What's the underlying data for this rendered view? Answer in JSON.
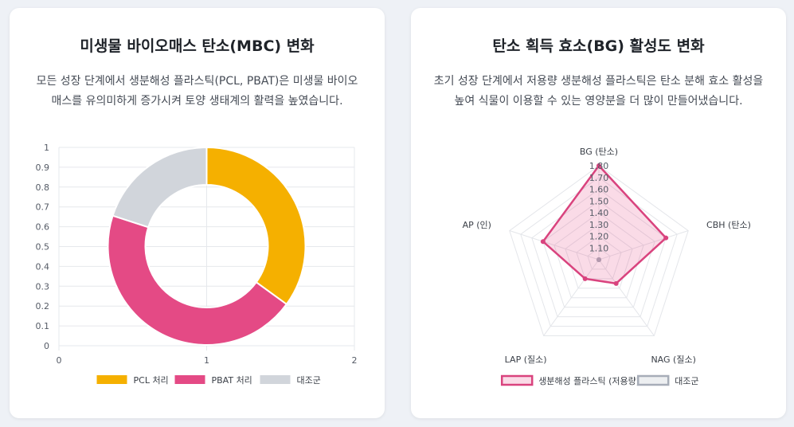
{
  "charts": [
    {
      "title": "미생물 바이오매스 탄소(MBC) 변화",
      "description": "모든 성장 단계에서 생분해성 플라스틱(PCL, PBAT)은 미생물 바이오매스를 유의미하게 증가시켜 토양 생태계의 활력을 높였습니다."
    },
    {
      "title": "탄소 획득 효소(BG) 활성도 변화",
      "description": "초기 성장 단계에서 저용량 생분해성 플라스틱은 탄소 분해 효소 활성을 높여 식물이 이용할 수 있는 영양분을 더 많이 만들어냈습니다."
    }
  ],
  "chart_data": [
    {
      "type": "pie",
      "variant": "doughnut",
      "categories": [
        "PCL 처리",
        "PBAT 처리",
        "대조군"
      ],
      "values": [
        0.35,
        0.45,
        0.2
      ],
      "colors": [
        "#f5b000",
        "#e44a85",
        "#d1d5db"
      ],
      "x_ticks": [
        "0",
        "1",
        "2"
      ],
      "y_ticks": [
        "0",
        "0.1",
        "0.2",
        "0.3",
        "0.4",
        "0.5",
        "0.6",
        "0.7",
        "0.8",
        "0.9",
        "1"
      ],
      "xlim": [
        0,
        2
      ],
      "ylim": [
        0,
        1
      ],
      "grid": true,
      "legend_position": "bottom"
    },
    {
      "type": "radar",
      "axes": [
        "BG (탄소)",
        "CBH (탄소)",
        "NAG (질소)",
        "LAP (질소)",
        "AP (인)"
      ],
      "r_ticks": [
        "1.10",
        "1.20",
        "1.30",
        "1.40",
        "1.50",
        "1.60",
        "1.70",
        "1.80"
      ],
      "rlim": [
        1.0,
        1.8
      ],
      "series": [
        {
          "name": "생분해성 플라스틱 (저용량)",
          "values": [
            1.8,
            1.6,
            1.25,
            1.2,
            1.5
          ],
          "color": "#d9437e",
          "fill": "rgba(228,74,133,0.2)"
        },
        {
          "name": "대조군",
          "values": [
            1.0,
            1.0,
            1.0,
            1.0,
            1.0
          ],
          "color": "#a7adb8",
          "fill": "rgba(167,173,184,0.2)"
        }
      ],
      "grid": true,
      "legend_position": "bottom"
    }
  ]
}
